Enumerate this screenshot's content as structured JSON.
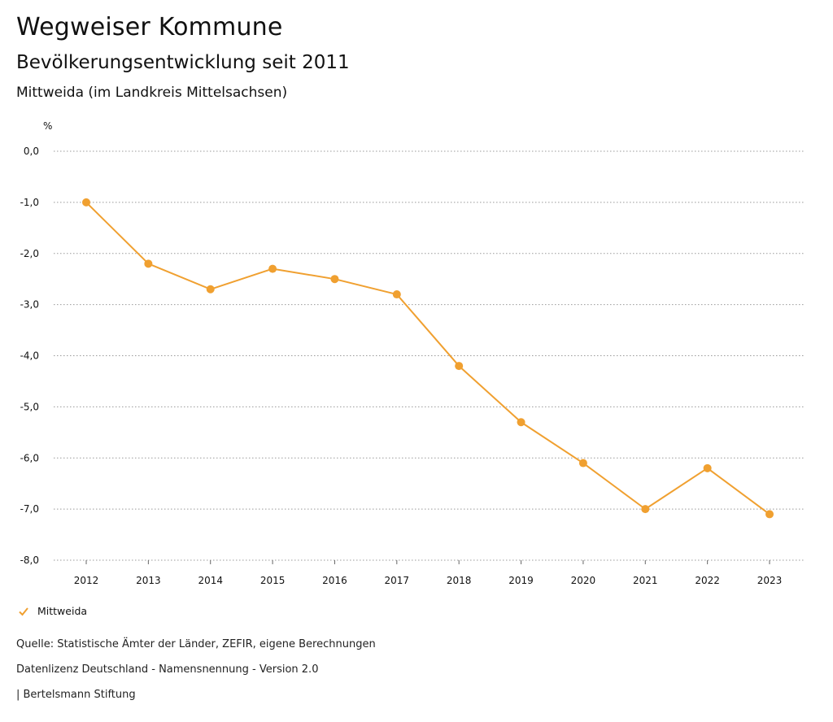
{
  "header": {
    "title": "Wegweiser Kommune",
    "subtitle": "Bevölkerungsentwicklung seit 2011",
    "region": "Mittweida (im Landkreis Mittelsachsen)"
  },
  "legend": {
    "label": "Mittweida"
  },
  "footer": {
    "source": "Quelle: Statistische Ämter der Länder, ZEFIR, eigene Berechnungen",
    "license": "Datenlizenz Deutschland - Namensnennung - Version 2.0",
    "publisher": "| Bertelsmann Stiftung"
  },
  "colors": {
    "series": "#F0A030",
    "grid": "#999999"
  },
  "chart_data": {
    "type": "line",
    "ylabel": "%",
    "x": [
      "2012",
      "2013",
      "2014",
      "2015",
      "2016",
      "2017",
      "2018",
      "2019",
      "2020",
      "2021",
      "2022",
      "2023"
    ],
    "series": [
      {
        "name": "Mittweida",
        "values": [
          -1.0,
          -2.2,
          -2.7,
          -2.3,
          -2.5,
          -2.8,
          -4.2,
          -5.3,
          -6.1,
          -7.0,
          -6.2,
          -7.1
        ]
      }
    ],
    "ylim": [
      -8.0,
      0.0
    ],
    "yticks": [
      "0,0",
      "-1,0",
      "-2,0",
      "-3,0",
      "-4,0",
      "-5,0",
      "-6,0",
      "-7,0",
      "-8,0"
    ],
    "grid": true,
    "legend": "bottom-left"
  }
}
